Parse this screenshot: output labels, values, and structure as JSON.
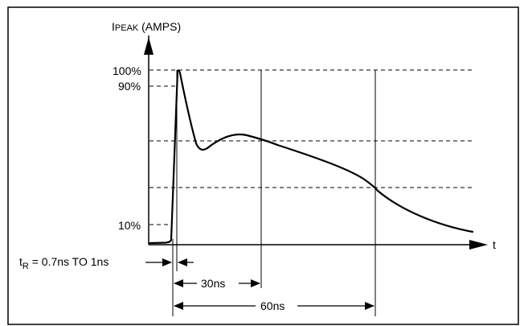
{
  "chart_data": {
    "type": "line",
    "title": "",
    "ylabel": {
      "prefix": "I",
      "subscript": "PEAK",
      "suffix": " (AMPS)"
    },
    "xlabel": "t",
    "y_ticks": [
      "100%",
      "90%",
      "10%"
    ],
    "reference_levels_percent": [
      100,
      90,
      10
    ],
    "dimensions": {
      "rise_time": {
        "prefix": "t",
        "subscript": "R",
        "suffix": " = 0.7ns TO 1ns"
      },
      "t30": "30ns",
      "t60": "60ns"
    },
    "series": [
      {
        "x_ns": [
          0,
          7,
          8.5,
          9.5,
          10.5,
          11,
          13,
          16,
          20,
          26,
          32,
          38,
          45,
          52,
          60,
          68,
          76,
          84,
          92
        ],
        "y_percent": [
          0,
          0.5,
          1.5,
          80,
          100,
          96,
          75,
          56,
          58,
          64,
          60,
          55,
          49,
          41,
          32,
          23,
          16,
          10,
          6
        ]
      }
    ]
  }
}
